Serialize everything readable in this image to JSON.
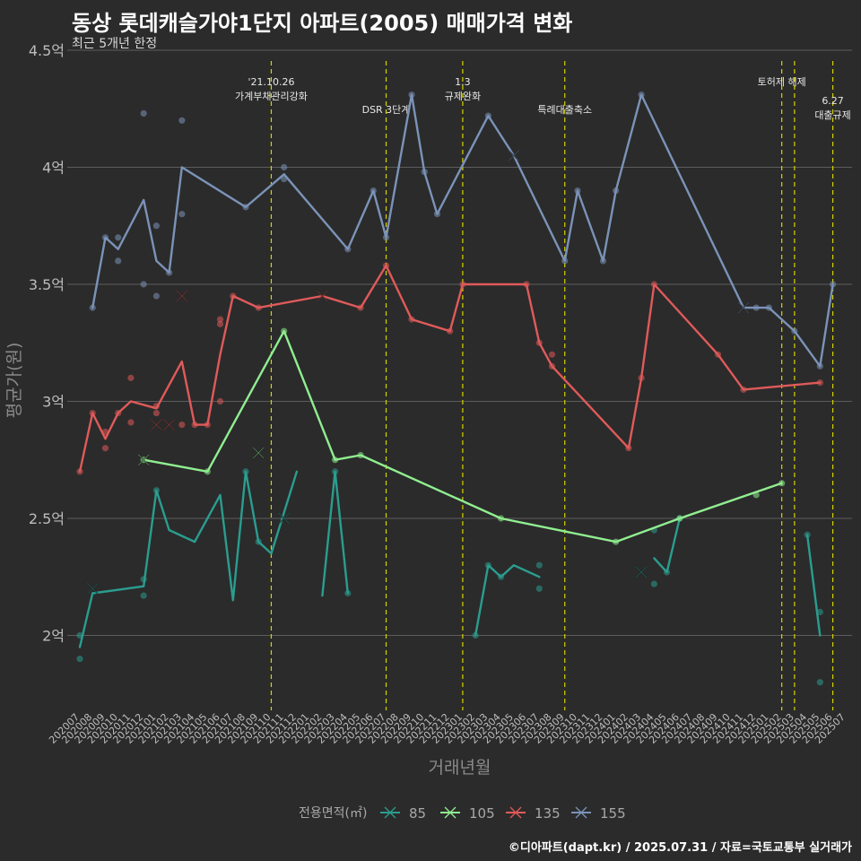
{
  "title": "동상 롯데캐슬가야1단지 아파트(2005) 매매가격 변화",
  "subtitle": "최근 5개년 한정",
  "caption": "©디아파트(dapt.kr) / 2025.07.31 / 자료=국토교통부 실거래가",
  "chart_data": {
    "type": "line",
    "xlabel": "거래년월",
    "ylabel": "평균가(원)",
    "categories": [
      "202007",
      "202008",
      "202009",
      "202010",
      "202011",
      "202012",
      "202101",
      "202102",
      "202103",
      "202104",
      "202105",
      "202106",
      "202107",
      "202108",
      "202109",
      "202110",
      "202111",
      "202112",
      "202201",
      "202202",
      "202203",
      "202204",
      "202205",
      "202206",
      "202207",
      "202208",
      "202209",
      "202210",
      "202211",
      "202212",
      "202301",
      "202302",
      "202303",
      "202304",
      "202305",
      "202306",
      "202307",
      "202308",
      "202309",
      "202310",
      "202311",
      "202312",
      "202401",
      "202402",
      "202403",
      "202404",
      "202405",
      "202406",
      "202407",
      "202408",
      "202409",
      "202410",
      "202411",
      "202412",
      "202501",
      "202502",
      "202503",
      "202504",
      "202505",
      "202506",
      "202507"
    ],
    "ylim": [
      1.68,
      4.5
    ],
    "y_ticks": [
      2,
      2.5,
      3,
      3.5,
      4,
      4.5
    ],
    "y_tick_labels": [
      "2억",
      "2.5억",
      "3억",
      "3.5억",
      "4억",
      "4.5억"
    ],
    "grid": true,
    "legend": {
      "title": "전용면적(㎡)",
      "position": "bottom"
    },
    "series": [
      {
        "name": "85",
        "color": "#2a9d8f",
        "segments": [
          [
            [
              0,
              1.95
            ],
            [
              1,
              2.18
            ],
            [
              5,
              2.21
            ],
            [
              6,
              2.62
            ],
            [
              7,
              2.45
            ],
            [
              9,
              2.4
            ],
            [
              11,
              2.6
            ],
            [
              12,
              2.15
            ],
            [
              13,
              2.7
            ],
            [
              14,
              2.4
            ],
            [
              15,
              2.35
            ],
            [
              17,
              2.7
            ]
          ],
          [
            [
              19,
              2.17
            ],
            [
              20,
              2.7
            ],
            [
              21,
              2.18
            ]
          ],
          [
            [
              31,
              2.0
            ],
            [
              32,
              2.3
            ],
            [
              33,
              2.25
            ],
            [
              34,
              2.3
            ],
            [
              36,
              2.25
            ]
          ],
          [
            [
              45,
              2.33
            ],
            [
              46,
              2.27
            ],
            [
              47,
              2.5
            ]
          ],
          [
            [
              57,
              2.43
            ],
            [
              58,
              2.0
            ]
          ]
        ],
        "points": [
          [
            0,
            1.9
          ],
          [
            0,
            2.0
          ],
          [
            5,
            2.17
          ],
          [
            5,
            2.24
          ],
          [
            6,
            2.62
          ],
          [
            13,
            2.7
          ],
          [
            14,
            2.4
          ],
          [
            20,
            2.7
          ],
          [
            21,
            2.18
          ],
          [
            31,
            2.0
          ],
          [
            32,
            2.3
          ],
          [
            33,
            2.25
          ],
          [
            36,
            2.2
          ],
          [
            36,
            2.3
          ],
          [
            45,
            2.22
          ],
          [
            45,
            2.45
          ],
          [
            46,
            2.27
          ],
          [
            47,
            2.5
          ],
          [
            57,
            2.43
          ],
          [
            58,
            2.1
          ],
          [
            58,
            1.8
          ]
        ],
        "x_marks": [
          [
            1,
            2.2
          ],
          [
            16,
            2.5
          ],
          [
            44,
            2.27
          ]
        ]
      },
      {
        "name": "105",
        "color": "#90ee90",
        "segments": [
          [
            [
              5,
              2.75
            ],
            [
              10,
              2.7
            ],
            [
              16,
              3.3
            ],
            [
              20,
              2.75
            ],
            [
              22,
              2.77
            ],
            [
              33,
              2.5
            ],
            [
              42,
              2.4
            ],
            [
              47,
              2.5
            ],
            [
              55,
              2.65
            ]
          ]
        ],
        "points": [
          [
            5,
            2.75
          ],
          [
            10,
            2.7
          ],
          [
            16,
            3.3
          ],
          [
            20,
            2.75
          ],
          [
            22,
            2.77
          ],
          [
            33,
            2.5
          ],
          [
            42,
            2.4
          ],
          [
            47,
            2.5
          ],
          [
            53,
            2.6
          ],
          [
            55,
            2.65
          ]
        ],
        "x_marks": [
          [
            5,
            2.75
          ],
          [
            14,
            2.78
          ]
        ]
      },
      {
        "name": "135",
        "color": "#e05a5a",
        "segments": [
          [
            [
              0,
              2.7
            ],
            [
              1,
              2.95
            ],
            [
              2,
              2.84
            ],
            [
              3,
              2.95
            ],
            [
              4,
              3.0
            ],
            [
              6,
              2.97
            ],
            [
              8,
              3.17
            ],
            [
              9,
              2.9
            ],
            [
              10,
              2.9
            ],
            [
              11,
              3.2
            ],
            [
              12,
              3.45
            ],
            [
              14,
              3.4
            ],
            [
              19,
              3.45
            ],
            [
              22,
              3.4
            ],
            [
              24,
              3.58
            ],
            [
              26,
              3.35
            ],
            [
              29,
              3.3
            ],
            [
              30,
              3.5
            ],
            [
              35,
              3.5
            ],
            [
              36,
              3.25
            ],
            [
              37,
              3.15
            ],
            [
              43,
              2.8
            ],
            [
              44,
              3.1
            ],
            [
              45,
              3.5
            ],
            [
              50,
              3.2
            ],
            [
              52,
              3.05
            ],
            [
              58,
              3.08
            ]
          ]
        ],
        "points": [
          [
            0,
            2.7
          ],
          [
            1,
            2.95
          ],
          [
            2,
            2.8
          ],
          [
            2,
            2.87
          ],
          [
            3,
            2.95
          ],
          [
            4,
            3.1
          ],
          [
            4,
            2.91
          ],
          [
            6,
            2.95
          ],
          [
            6,
            2.98
          ],
          [
            8,
            2.9
          ],
          [
            9,
            2.9
          ],
          [
            10,
            2.9
          ],
          [
            11,
            3.0
          ],
          [
            11,
            3.33
          ],
          [
            11,
            3.35
          ],
          [
            12,
            3.45
          ],
          [
            14,
            3.4
          ],
          [
            22,
            3.4
          ],
          [
            24,
            3.58
          ],
          [
            26,
            3.35
          ],
          [
            29,
            3.3
          ],
          [
            30,
            3.5
          ],
          [
            35,
            3.5
          ],
          [
            36,
            3.25
          ],
          [
            37,
            3.2
          ],
          [
            37,
            3.15
          ],
          [
            43,
            2.8
          ],
          [
            44,
            3.1
          ],
          [
            45,
            3.5
          ],
          [
            50,
            3.2
          ],
          [
            52,
            3.05
          ],
          [
            58,
            3.08
          ]
        ],
        "x_marks": [
          [
            6,
            2.9
          ],
          [
            7,
            2.9
          ],
          [
            8,
            3.45
          ],
          [
            19,
            3.45
          ]
        ]
      },
      {
        "name": "155",
        "color": "#7b93b8",
        "segments": [
          [
            [
              1,
              3.4
            ],
            [
              2,
              3.7
            ],
            [
              3,
              3.65
            ],
            [
              5,
              3.86
            ],
            [
              6,
              3.6
            ],
            [
              7,
              3.55
            ],
            [
              8,
              4.0
            ],
            [
              13,
              3.83
            ],
            [
              16,
              3.97
            ],
            [
              21,
              3.65
            ],
            [
              23,
              3.9
            ],
            [
              24,
              3.7
            ],
            [
              26,
              4.31
            ],
            [
              27,
              3.98
            ],
            [
              28,
              3.8
            ],
            [
              32,
              4.22
            ],
            [
              34,
              4.05
            ],
            [
              38,
              3.6
            ],
            [
              39,
              3.9
            ],
            [
              41,
              3.6
            ],
            [
              42,
              3.9
            ],
            [
              44,
              4.31
            ],
            [
              52,
              3.4
            ],
            [
              53,
              3.4
            ],
            [
              54,
              3.4
            ],
            [
              56,
              3.3
            ],
            [
              58,
              3.15
            ],
            [
              59,
              3.5
            ]
          ]
        ],
        "points": [
          [
            1,
            3.4
          ],
          [
            2,
            3.7
          ],
          [
            3,
            3.6
          ],
          [
            3,
            3.7
          ],
          [
            5,
            4.23
          ],
          [
            5,
            3.5
          ],
          [
            6,
            3.75
          ],
          [
            6,
            3.45
          ],
          [
            7,
            3.55
          ],
          [
            8,
            4.2
          ],
          [
            8,
            3.8
          ],
          [
            13,
            3.83
          ],
          [
            16,
            4.0
          ],
          [
            16,
            3.95
          ],
          [
            21,
            3.65
          ],
          [
            23,
            3.9
          ],
          [
            24,
            3.7
          ],
          [
            26,
            4.31
          ],
          [
            27,
            3.98
          ],
          [
            28,
            3.8
          ],
          [
            32,
            4.22
          ],
          [
            38,
            3.6
          ],
          [
            39,
            3.9
          ],
          [
            41,
            3.6
          ],
          [
            42,
            3.9
          ],
          [
            44,
            4.31
          ],
          [
            53,
            3.4
          ],
          [
            54,
            3.4
          ],
          [
            56,
            3.3
          ],
          [
            58,
            3.15
          ],
          [
            59,
            3.5
          ]
        ],
        "x_marks": [
          [
            34,
            4.05
          ],
          [
            52,
            3.4
          ]
        ]
      }
    ],
    "events": [
      {
        "x": 15,
        "lines": [
          "'21.10.26",
          "가계부채관리강화"
        ],
        "row": 0
      },
      {
        "x": 24,
        "lines": [
          "DSR 3단계"
        ],
        "row": 1
      },
      {
        "x": 30,
        "lines": [
          "1.3",
          "규제완화"
        ],
        "row": 0
      },
      {
        "x": 38,
        "lines": [
          "특례대출축소"
        ],
        "row": 1
      },
      {
        "x": 55,
        "lines": [
          "토허제 해제"
        ],
        "row": 0
      },
      {
        "x": 56,
        "lines": [],
        "row": 0
      },
      {
        "x": 59,
        "lines": [
          "6.27",
          "대출규제"
        ],
        "row": 2
      }
    ]
  }
}
